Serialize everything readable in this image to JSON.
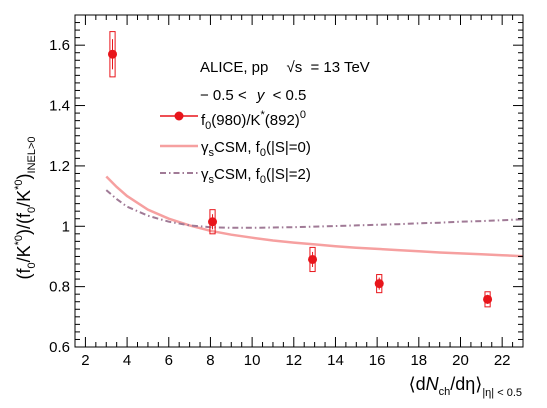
{
  "chart_data": {
    "type": "scatter",
    "header": {
      "experiment": "ALICE, pp",
      "energy_prefix": "√s",
      "energy_value": "= 13 TeV",
      "rapidity_left": "− 0.5 <",
      "rapidity_var": "y",
      "rapidity_right": "< 0.5"
    },
    "ylabel": {
      "open": "(f",
      "s1": "0",
      "mid1": "/K",
      "sup1": "*0",
      "mid2": ")/(f",
      "s2": "0",
      "mid3": "/K",
      "sup2": "*0",
      "close": ")",
      "sub": "INEL>0"
    },
    "xlabel": {
      "open": "⟨d",
      "var": "N",
      "sub1": "ch",
      "close": "/dη⟩",
      "sub2": "|η| < 0.5"
    },
    "xlim": [
      1.5,
      23
    ],
    "ylim": [
      0.6,
      1.7
    ],
    "x_ticks": [
      2,
      4,
      6,
      8,
      10,
      12,
      14,
      16,
      18,
      20,
      22
    ],
    "x_tick_labels": [
      "2",
      "4",
      "6",
      "8",
      "10",
      "12",
      "14",
      "16",
      "18",
      "20",
      "22"
    ],
    "y_ticks": [
      0.6,
      0.8,
      1.0,
      1.2,
      1.4,
      1.6
    ],
    "y_tick_labels": [
      "0.6",
      "0.8",
      "1",
      "1.2",
      "1.4",
      "1.6"
    ],
    "grid": false,
    "legend_position": "top-right",
    "legend": {
      "data_label": "f",
      "data_sub": "0",
      "data_mid": "(980)/K",
      "data_sup": "*",
      "data_end": "(892)",
      "data_sup2": "0",
      "csm0_gamma": "γ",
      "csm0_gsub": "s",
      "csm0_mid": "CSM, f",
      "csm0_fsub": "0",
      "csm0_end": "(|S|=0)",
      "csm2_gamma": "γ",
      "csm2_gsub": "s",
      "csm2_mid": "CSM, f",
      "csm2_fsub": "0",
      "csm2_end": "(|S|=2)"
    },
    "colors": {
      "data": "#e8151b",
      "csm0": "#f6a0a0",
      "csm2": "#a07a96",
      "frame": "#000000"
    },
    "data_points": [
      {
        "x": 3.3,
        "y": 1.57,
        "stat_err": 0.05,
        "sys_err": 0.075,
        "sys_width": 0.25
      },
      {
        "x": 8.1,
        "y": 1.015,
        "stat_err": 0.025,
        "sys_err": 0.04,
        "sys_width": 0.25
      },
      {
        "x": 12.9,
        "y": 0.89,
        "stat_err": 0.025,
        "sys_err": 0.04,
        "sys_width": 0.25
      },
      {
        "x": 16.1,
        "y": 0.81,
        "stat_err": 0.02,
        "sys_err": 0.03,
        "sys_width": 0.25
      },
      {
        "x": 21.3,
        "y": 0.758,
        "stat_err": 0.015,
        "sys_err": 0.025,
        "sys_width": 0.25
      }
    ],
    "series": [
      {
        "key": "csm0",
        "style": "solid",
        "x": [
          3.0,
          3.5,
          4.0,
          5.0,
          6.0,
          7.0,
          8.0,
          9.0,
          10.0,
          11.0,
          12.0,
          13.0,
          14.0,
          15.0,
          16.0,
          17.0,
          18.0,
          19.0,
          20.0,
          21.0,
          22.0,
          23.0
        ],
        "y": [
          1.165,
          1.13,
          1.1,
          1.055,
          1.025,
          1.003,
          0.985,
          0.972,
          0.962,
          0.953,
          0.946,
          0.94,
          0.934,
          0.929,
          0.925,
          0.921,
          0.917,
          0.913,
          0.91,
          0.907,
          0.904,
          0.901
        ]
      },
      {
        "key": "csm2",
        "style": "dashdot",
        "x": [
          3.0,
          3.5,
          4.0,
          5.0,
          6.0,
          7.0,
          8.0,
          9.0,
          10.0,
          11.0,
          12.0,
          13.0,
          14.0,
          15.0,
          16.0,
          17.0,
          18.0,
          19.0,
          20.0,
          21.0,
          22.0,
          23.0
        ],
        "y": [
          1.12,
          1.09,
          1.065,
          1.035,
          1.015,
          1.003,
          0.997,
          0.995,
          0.995,
          0.996,
          0.997,
          0.999,
          1.001,
          1.003,
          1.005,
          1.007,
          1.01,
          1.012,
          1.015,
          1.017,
          1.02,
          1.023
        ]
      }
    ]
  }
}
